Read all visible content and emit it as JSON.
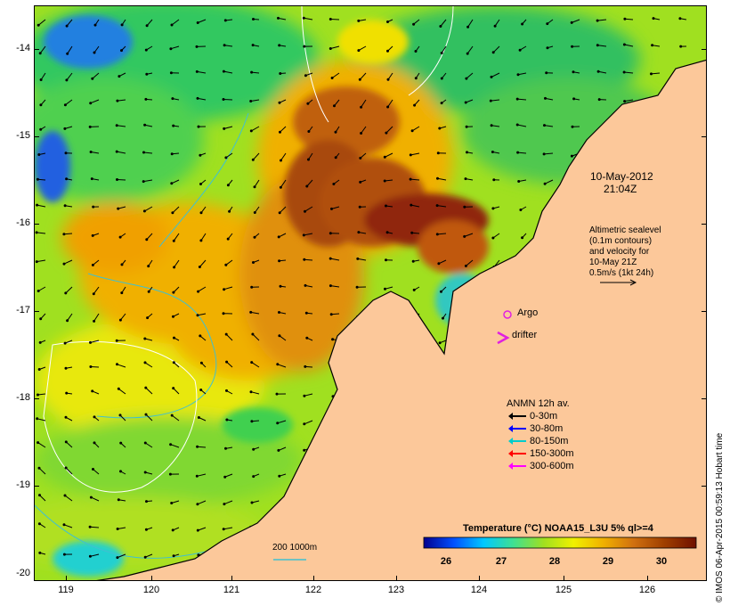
{
  "map": {
    "date": "10-May-2012",
    "time": "21:04Z",
    "altimetry_note": [
      "Altimetric sealevel",
      "(0.1m contours)",
      "and velocity for",
      "10-May 21Z",
      "0.5m/s (1kt 24h)"
    ],
    "markers": {
      "argo": "Argo",
      "drifter": "drifter"
    },
    "bathymetry_label": "200  1000m",
    "lat_ticks": [
      "-14",
      "-15",
      "-16",
      "-17",
      "-18",
      "-19",
      "-20"
    ],
    "lon_ticks": [
      "119",
      "120",
      "121",
      "122",
      "123",
      "124",
      "125",
      "126"
    ],
    "credit": "© IMOS 06-Apr-2015 00:59:13 Hobart time"
  },
  "legend": {
    "title": "ANMN 12h av.",
    "items": [
      {
        "label": "0-30m",
        "color": "#000000"
      },
      {
        "label": "30-80m",
        "color": "#0000ff"
      },
      {
        "label": "80-150m",
        "color": "#00cccc"
      },
      {
        "label": "150-300m",
        "color": "#ff0000"
      },
      {
        "label": "300-600m",
        "color": "#ff00ff"
      }
    ]
  },
  "colorbar": {
    "title": "Temperature (°C) NOAA15_L3U 5% ql>=4",
    "ticks": [
      "26",
      "27",
      "28",
      "29",
      "30"
    ],
    "colors": [
      "#00008f",
      "#0050ff",
      "#00c8ff",
      "#40e090",
      "#a0e020",
      "#f0f000",
      "#f0b000",
      "#d07010",
      "#a04000",
      "#701000"
    ]
  },
  "colors": {
    "land": "#fcc89a",
    "coast": "#000000",
    "altimetry_contour": "#ffffff",
    "bathymetry": "#40c0d0"
  }
}
